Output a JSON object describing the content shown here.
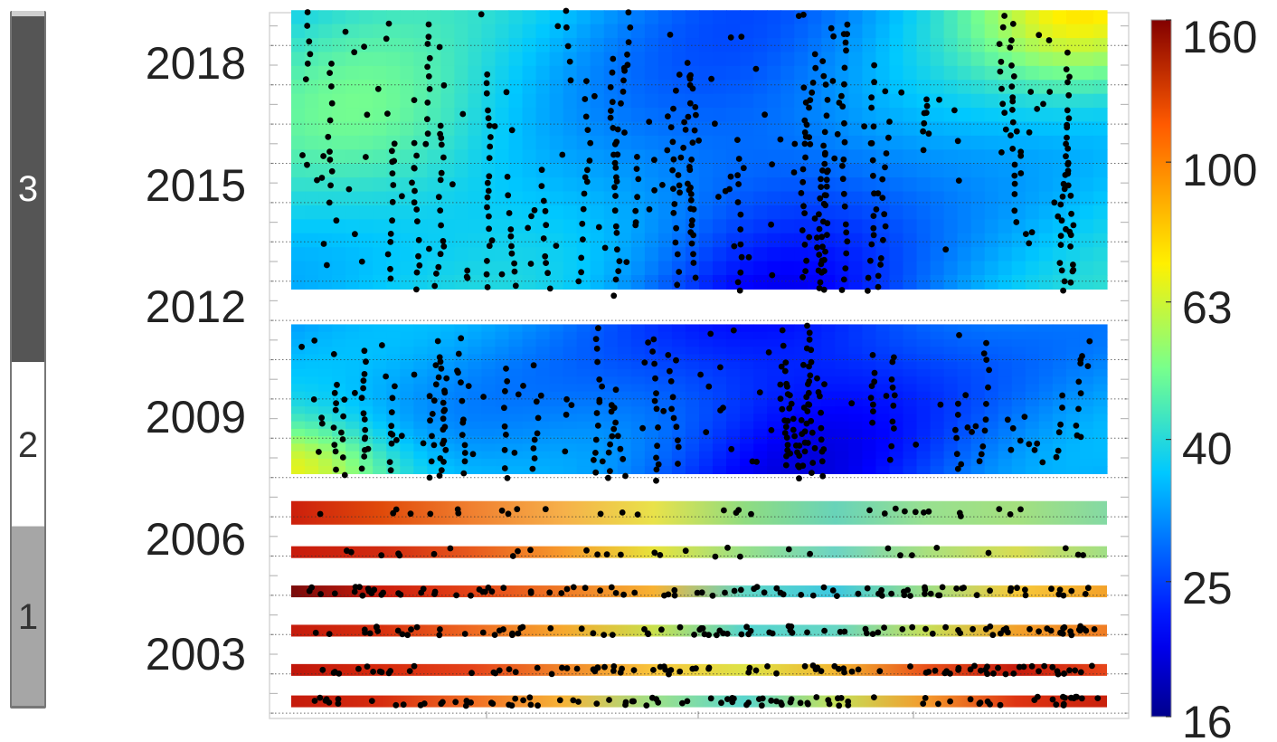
{
  "chart_data": {
    "type": "heatmap",
    "title": "",
    "xlabel": "",
    "ylabel": "",
    "y_axis": {
      "tick_labels": [
        "2018",
        "2015",
        "2012",
        "2009",
        "2006",
        "2003"
      ],
      "tick_values": [
        2018,
        2015,
        2012,
        2009,
        2006,
        2003
      ],
      "range": [
        2001,
        2019.5
      ]
    },
    "x_axis": {
      "range": [
        0,
        1
      ],
      "tick_labels": []
    },
    "grid": "horizontal dotted lines",
    "colorbar": {
      "colormap": "jet",
      "scale": "log",
      "range": [
        16,
        160
      ],
      "tick_labels": [
        "160",
        "100",
        "63",
        "40",
        "25",
        "16"
      ],
      "tick_values": [
        160,
        100,
        63,
        40,
        25,
        16
      ],
      "placement": "right"
    },
    "segments_bar": {
      "placement": "left",
      "segments": [
        {
          "label": "3",
          "from": 2010.2,
          "to": 2019.5,
          "color": "#555555"
        },
        {
          "label": "2",
          "from": 2005.8,
          "to": 2010.2,
          "color": "#ffffff"
        },
        {
          "label": "1",
          "from": 2001.0,
          "to": 2005.8,
          "color": "#a6a6a6"
        }
      ]
    },
    "panels": [
      {
        "id": "upper",
        "y_range": [
          2012.3,
          2019.4
        ],
        "description": "dense sampling, mostly low values (blue) with yellow at the upper right"
      },
      {
        "id": "middle",
        "y_range": [
          2007.6,
          2011.4
        ],
        "description": "mostly blue, yellow at the lower left"
      }
    ],
    "strips": [
      {
        "center": 2006.6,
        "height": 0.6,
        "colors": [
          "#cc1f0c",
          "#e04a0a",
          "#f08030",
          "#f6b04a",
          "#e9e24a",
          "#8fdc80",
          "#68d3b9",
          "#98e090",
          "#a4e07e",
          "#84d9a4"
        ]
      },
      {
        "center": 2005.6,
        "height": 0.3,
        "colors": [
          "#c81b0b",
          "#d12a10",
          "#e85a1d",
          "#f79a2c",
          "#e7e23b",
          "#98e089",
          "#6cd4c4",
          "#a8e07f",
          "#d8dd52",
          "#a0df87"
        ]
      },
      {
        "center": 2004.6,
        "height": 0.3,
        "colors": [
          "#7a0a0a",
          "#cc1d0c",
          "#e54417",
          "#ef7a26",
          "#f7b233",
          "#62d6c5",
          "#3cc8e0",
          "#9ddf86",
          "#f7c93a",
          "#f3a22a"
        ]
      },
      {
        "center": 2003.6,
        "height": 0.3,
        "colors": [
          "#c51b0c",
          "#d8300e",
          "#ef6a22",
          "#f6a82e",
          "#c9e04c",
          "#55d4cf",
          "#66d6c4",
          "#c6df58",
          "#f2a12a",
          "#f07d24"
        ]
      },
      {
        "center": 2002.6,
        "height": 0.3,
        "colors": [
          "#c0160b",
          "#d62a0d",
          "#e5431a",
          "#f1852a",
          "#f8c53c",
          "#dde347",
          "#f2b632",
          "#e9511a",
          "#c51b0c",
          "#e7461a"
        ]
      },
      {
        "center": 2001.8,
        "height": 0.3,
        "colors": [
          "#c51b0c",
          "#d62c0f",
          "#f16e24",
          "#f6b338",
          "#9ee189",
          "#59d5cd",
          "#c4e15a",
          "#f49a2c",
          "#de3412",
          "#c9210c"
        ]
      }
    ],
    "sample_points": "thousands of black dots mark sampling locations; positions are not individually labelled"
  }
}
